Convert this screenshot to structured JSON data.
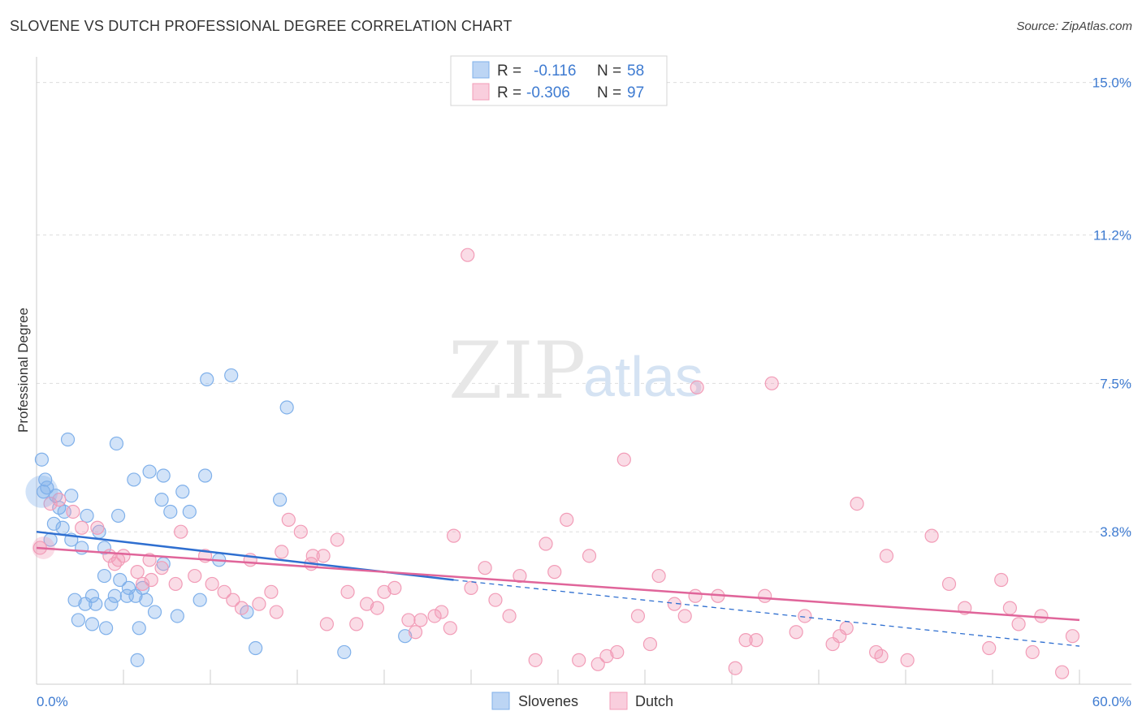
{
  "title": "SLOVENE VS DUTCH PROFESSIONAL DEGREE CORRELATION CHART",
  "source": "Source: ZipAtlas.com",
  "watermark": {
    "part1": "ZIP",
    "part2": "atlas"
  },
  "chart_data": {
    "type": "scatter",
    "title": "SLOVENE VS DUTCH PROFESSIONAL DEGREE CORRELATION CHART",
    "xlabel": "",
    "ylabel": "Professional Degree",
    "xlim": [
      0,
      60
    ],
    "ylim": [
      0,
      15.6
    ],
    "x_tick_labels": [
      {
        "value": 0,
        "label": "0.0%"
      },
      {
        "value": 60,
        "label": "60.0%"
      }
    ],
    "y_tick_labels": [
      {
        "value": 3.8,
        "label": "3.8%"
      },
      {
        "value": 7.5,
        "label": "7.5%"
      },
      {
        "value": 11.2,
        "label": "11.2%"
      },
      {
        "value": 15.0,
        "label": "15.0%"
      }
    ],
    "legend": {
      "placement": "top-center",
      "entries": [
        {
          "r_label": "R =",
          "r_value": "-0.116",
          "n_label": "N =",
          "n_value": "58"
        },
        {
          "r_label": "R =",
          "r_value": "-0.306",
          "n_label": "N =",
          "n_value": "97"
        }
      ]
    },
    "series": [
      {
        "name": "Slovenes",
        "color": "#7fb0ea",
        "line_color": "#2f6fd0",
        "trend": {
          "x0": 0,
          "y0": 3.8,
          "x1": 24,
          "y1": 2.6,
          "x_dash_end": 60,
          "y_dash_end": 0.95
        },
        "points": [
          [
            0.3,
            5.6
          ],
          [
            0.5,
            5.1
          ],
          [
            0.4,
            4.8
          ],
          [
            0.6,
            4.9
          ],
          [
            1.1,
            4.7
          ],
          [
            1.3,
            4.4
          ],
          [
            2.0,
            4.7
          ],
          [
            1.6,
            4.3
          ],
          [
            1.0,
            4.0
          ],
          [
            2.9,
            4.2
          ],
          [
            1.5,
            3.9
          ],
          [
            0.8,
            3.6
          ],
          [
            2.0,
            3.6
          ],
          [
            3.6,
            3.8
          ],
          [
            2.6,
            3.4
          ],
          [
            3.9,
            3.4
          ],
          [
            1.8,
            6.1
          ],
          [
            4.6,
            6.0
          ],
          [
            5.6,
            5.1
          ],
          [
            6.5,
            5.3
          ],
          [
            7.3,
            5.2
          ],
          [
            9.7,
            5.2
          ],
          [
            7.2,
            4.6
          ],
          [
            8.4,
            4.8
          ],
          [
            7.7,
            4.3
          ],
          [
            8.8,
            4.3
          ],
          [
            4.7,
            4.2
          ],
          [
            14.0,
            4.6
          ],
          [
            9.8,
            7.6
          ],
          [
            11.2,
            7.7
          ],
          [
            14.4,
            6.9
          ],
          [
            7.3,
            3.0
          ],
          [
            10.5,
            3.1
          ],
          [
            3.9,
            2.7
          ],
          [
            4.8,
            2.6
          ],
          [
            5.3,
            2.4
          ],
          [
            6.1,
            2.4
          ],
          [
            2.2,
            2.1
          ],
          [
            3.2,
            2.2
          ],
          [
            2.8,
            2.0
          ],
          [
            3.4,
            2.0
          ],
          [
            4.3,
            2.0
          ],
          [
            4.5,
            2.2
          ],
          [
            5.2,
            2.2
          ],
          [
            5.7,
            2.2
          ],
          [
            6.3,
            2.1
          ],
          [
            6.8,
            1.8
          ],
          [
            8.1,
            1.7
          ],
          [
            9.4,
            2.1
          ],
          [
            12.1,
            1.8
          ],
          [
            2.4,
            1.6
          ],
          [
            3.2,
            1.5
          ],
          [
            4.0,
            1.4
          ],
          [
            5.9,
            1.4
          ],
          [
            12.6,
            0.9
          ],
          [
            17.7,
            0.8
          ],
          [
            21.2,
            1.2
          ],
          [
            5.8,
            0.6
          ]
        ]
      },
      {
        "name": "Dutch",
        "color": "#f29cb7",
        "line_color": "#e0659a",
        "trend": {
          "x0": 0,
          "y0": 3.4,
          "x1": 60,
          "y1": 1.6
        },
        "points": [
          [
            0.2,
            3.4
          ],
          [
            0.8,
            4.5
          ],
          [
            1.3,
            4.6
          ],
          [
            2.1,
            4.3
          ],
          [
            2.6,
            3.9
          ],
          [
            3.5,
            3.9
          ],
          [
            4.2,
            3.2
          ],
          [
            4.5,
            3.0
          ],
          [
            4.7,
            3.1
          ],
          [
            5.0,
            3.2
          ],
          [
            5.8,
            2.8
          ],
          [
            6.1,
            2.5
          ],
          [
            6.6,
            2.6
          ],
          [
            7.2,
            2.9
          ],
          [
            8.0,
            2.5
          ],
          [
            8.3,
            3.8
          ],
          [
            9.1,
            2.7
          ],
          [
            9.7,
            3.2
          ],
          [
            10.1,
            2.5
          ],
          [
            10.8,
            2.3
          ],
          [
            11.3,
            2.1
          ],
          [
            11.8,
            1.9
          ],
          [
            12.3,
            3.1
          ],
          [
            12.8,
            2.0
          ],
          [
            13.5,
            2.3
          ],
          [
            13.8,
            1.8
          ],
          [
            14.1,
            3.3
          ],
          [
            14.5,
            4.1
          ],
          [
            15.2,
            3.8
          ],
          [
            15.8,
            3.0
          ],
          [
            15.9,
            3.2
          ],
          [
            16.5,
            3.2
          ],
          [
            16.7,
            1.5
          ],
          [
            17.3,
            3.6
          ],
          [
            17.9,
            2.3
          ],
          [
            18.4,
            1.5
          ],
          [
            19.0,
            2.0
          ],
          [
            19.6,
            1.9
          ],
          [
            20.0,
            2.3
          ],
          [
            20.6,
            2.4
          ],
          [
            21.4,
            1.6
          ],
          [
            21.8,
            1.3
          ],
          [
            22.1,
            1.6
          ],
          [
            22.9,
            1.7
          ],
          [
            23.3,
            1.8
          ],
          [
            23.8,
            1.4
          ],
          [
            24.0,
            3.7
          ],
          [
            25.0,
            2.4
          ],
          [
            25.8,
            2.9
          ],
          [
            26.4,
            2.1
          ],
          [
            27.2,
            1.7
          ],
          [
            27.8,
            2.7
          ],
          [
            28.7,
            0.6
          ],
          [
            29.3,
            3.5
          ],
          [
            29.8,
            2.8
          ],
          [
            30.5,
            4.1
          ],
          [
            31.2,
            0.6
          ],
          [
            31.8,
            3.2
          ],
          [
            32.3,
            0.5
          ],
          [
            32.8,
            0.7
          ],
          [
            33.4,
            0.8
          ],
          [
            33.8,
            5.6
          ],
          [
            34.6,
            1.7
          ],
          [
            35.3,
            1.0
          ],
          [
            35.8,
            2.7
          ],
          [
            36.7,
            2.0
          ],
          [
            37.3,
            1.7
          ],
          [
            37.9,
            2.2
          ],
          [
            38.0,
            7.4
          ],
          [
            39.2,
            2.2
          ],
          [
            40.2,
            0.4
          ],
          [
            40.8,
            1.1
          ],
          [
            41.4,
            1.1
          ],
          [
            41.9,
            2.2
          ],
          [
            42.3,
            7.5
          ],
          [
            43.7,
            1.3
          ],
          [
            44.2,
            1.7
          ],
          [
            45.8,
            1.0
          ],
          [
            46.2,
            1.2
          ],
          [
            46.6,
            1.4
          ],
          [
            47.2,
            4.5
          ],
          [
            48.3,
            0.8
          ],
          [
            48.6,
            0.7
          ],
          [
            48.9,
            3.2
          ],
          [
            50.1,
            0.6
          ],
          [
            51.5,
            3.7
          ],
          [
            52.5,
            2.5
          ],
          [
            53.4,
            1.9
          ],
          [
            54.8,
            0.9
          ],
          [
            55.5,
            2.6
          ],
          [
            56.0,
            1.9
          ],
          [
            56.5,
            1.5
          ],
          [
            57.3,
            0.8
          ],
          [
            57.8,
            1.7
          ],
          [
            59.0,
            0.3
          ],
          [
            59.6,
            1.2
          ],
          [
            6.5,
            3.1
          ]
        ],
        "outlier": [
          24.8,
          10.7
        ]
      }
    ]
  }
}
